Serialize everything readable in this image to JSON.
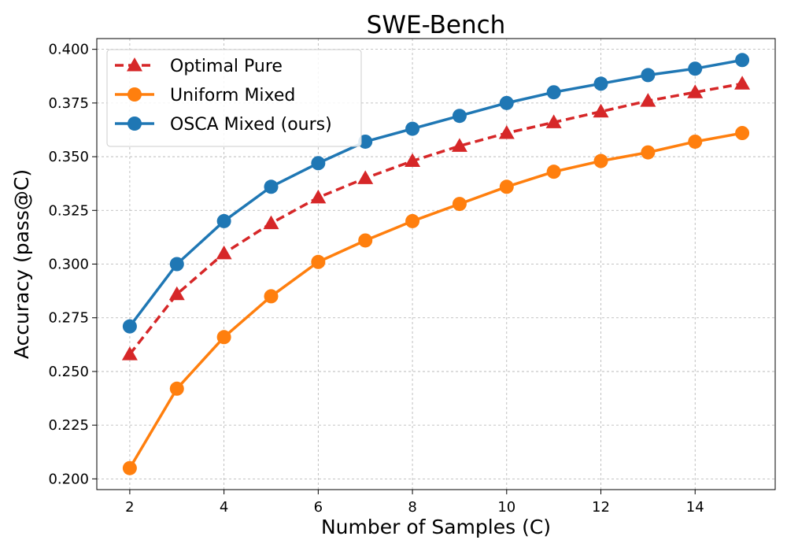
{
  "chart_data": {
    "type": "line",
    "title": "SWE-Bench",
    "xlabel": "Number of Samples (C)",
    "ylabel": "Accuracy (pass@C)",
    "x": [
      2,
      3,
      4,
      5,
      6,
      7,
      8,
      9,
      10,
      11,
      12,
      13,
      14,
      15
    ],
    "xticks": [
      2,
      4,
      6,
      8,
      10,
      12,
      14
    ],
    "xtick_labels": [
      "2",
      "4",
      "6",
      "8",
      "10",
      "12",
      "14"
    ],
    "yticks": [
      0.2,
      0.225,
      0.25,
      0.275,
      0.3,
      0.325,
      0.35,
      0.375,
      0.4
    ],
    "ytick_labels": [
      "0.200",
      "0.225",
      "0.250",
      "0.275",
      "0.300",
      "0.325",
      "0.350",
      "0.375",
      "0.400"
    ],
    "xlim": [
      1.3,
      15.7
    ],
    "ylim": [
      0.195,
      0.405
    ],
    "grid": true,
    "legend_position": "top-left",
    "series": [
      {
        "name": "Optimal Pure",
        "color": "#d62728",
        "line_style": "dashed",
        "marker": "triangle",
        "values": [
          0.258,
          0.286,
          0.305,
          0.319,
          0.331,
          0.34,
          0.348,
          0.355,
          0.361,
          0.366,
          0.371,
          0.376,
          0.38,
          0.384
        ]
      },
      {
        "name": "Uniform Mixed",
        "color": "#ff7f0e",
        "line_style": "solid",
        "marker": "circle",
        "values": [
          0.205,
          0.242,
          0.266,
          0.285,
          0.301,
          0.311,
          0.32,
          0.328,
          0.336,
          0.343,
          0.348,
          0.352,
          0.357,
          0.361
        ]
      },
      {
        "name": "OSCA Mixed (ours)",
        "color": "#1f77b4",
        "line_style": "solid",
        "marker": "circle",
        "values": [
          0.271,
          0.3,
          0.32,
          0.336,
          0.347,
          0.357,
          0.363,
          0.369,
          0.375,
          0.38,
          0.384,
          0.388,
          0.391,
          0.395
        ]
      }
    ]
  }
}
